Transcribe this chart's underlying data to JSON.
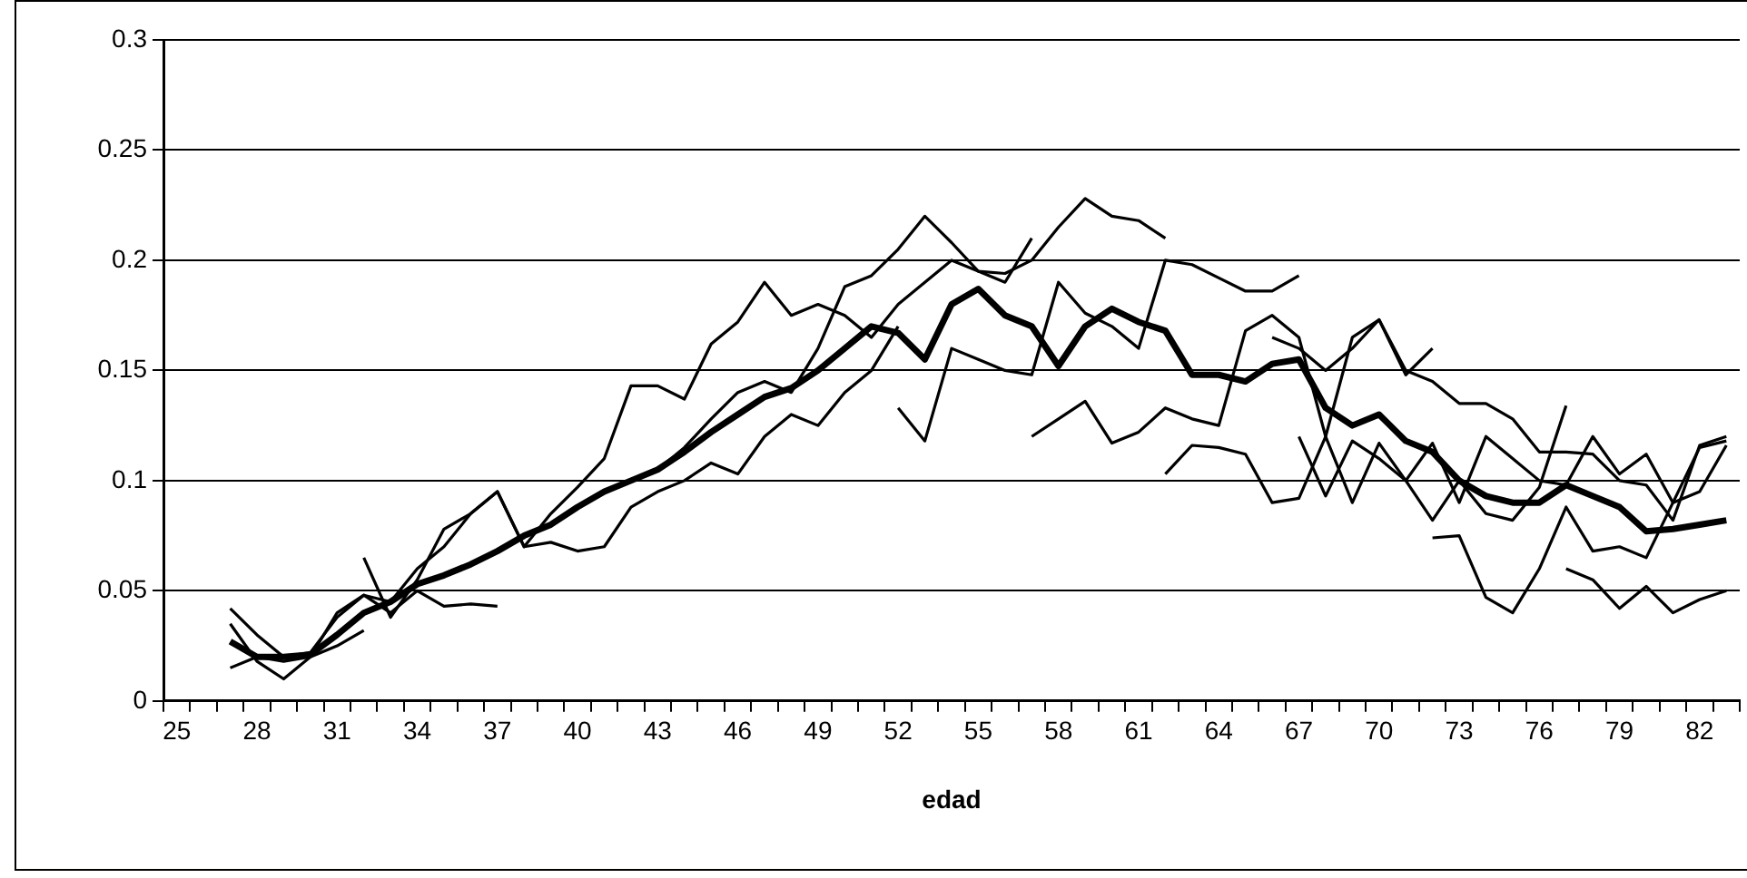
{
  "chart_data": {
    "type": "line",
    "xlabel": "edad",
    "categories": [
      "25",
      null,
      null,
      "28",
      null,
      null,
      "31",
      null,
      null,
      "34",
      null,
      null,
      "37",
      null,
      null,
      "40",
      null,
      null,
      "43",
      null,
      null,
      "46",
      null,
      null,
      "49",
      null,
      null,
      "52",
      null,
      null,
      "55",
      null,
      null,
      "58",
      null,
      null,
      "61",
      null,
      null,
      "64",
      null,
      null,
      "67",
      null,
      null,
      "70",
      null,
      null,
      "73",
      null,
      null,
      "76",
      null,
      null,
      "79",
      null,
      null,
      "82",
      null
    ],
    "ylim": [
      0,
      0.3
    ],
    "yticks": [
      0,
      0.05,
      0.1,
      0.15,
      0.2,
      0.25,
      0.3
    ],
    "grid": "y",
    "legend": false,
    "marker": "none",
    "line_style": "solid",
    "series": [
      {
        "color": "#000000",
        "values": [
          null,
          null,
          0.027,
          0.02,
          0.02,
          0.021,
          0.03,
          0.04,
          0.045,
          0.053,
          0.057,
          0.062,
          0.068,
          0.075,
          0.08,
          0.088,
          0.095,
          0.1,
          0.105,
          0.113,
          0.122,
          0.13,
          0.138,
          0.142,
          0.15,
          0.16,
          0.17,
          0.167,
          0.155,
          0.18,
          0.187,
          0.175,
          0.17,
          0.152,
          0.17,
          0.178,
          0.172,
          0.168,
          0.148,
          0.148,
          0.145,
          0.153,
          0.155,
          0.133,
          0.125,
          0.13,
          0.118,
          0.113,
          0.1,
          0.093,
          0.09,
          0.09,
          0.098,
          0.093,
          0.088,
          0.077,
          0.078,
          0.08,
          0.082
        ]
      },
      {
        "color": "#000000",
        "values": [
          null,
          null,
          0.042,
          0.03,
          0.02,
          0.022,
          0.038,
          0.048,
          0.04,
          0.05,
          0.043,
          0.044,
          0.043,
          null,
          null,
          null,
          null,
          null,
          null,
          null,
          null,
          null,
          null,
          null,
          null,
          null,
          null,
          null,
          null,
          null,
          null,
          null,
          null,
          null,
          null,
          null,
          null,
          null,
          null,
          null,
          null,
          null,
          null,
          null,
          null,
          null,
          null,
          null,
          null,
          null,
          null,
          null,
          null,
          null,
          null,
          null,
          null,
          null,
          null
        ]
      },
      {
        "color": "#000000",
        "values": [
          null,
          null,
          0.015,
          0.02,
          0.018,
          0.02,
          0.025,
          0.032,
          null,
          null,
          null,
          null,
          null,
          null,
          null,
          null,
          null,
          null,
          null,
          null,
          null,
          null,
          null,
          null,
          null,
          null,
          null,
          null,
          null,
          null,
          null,
          null,
          null,
          null,
          null,
          null,
          null,
          null,
          null,
          null,
          null,
          null,
          null,
          null,
          null,
          null,
          null,
          null,
          null,
          null,
          null,
          null,
          null,
          null,
          null,
          null,
          null,
          null,
          null
        ]
      },
      {
        "color": "#000000",
        "values": [
          null,
          null,
          0.035,
          0.018,
          0.01,
          0.02,
          0.04,
          0.048,
          0.045,
          0.06,
          0.07,
          0.085,
          0.095,
          0.07,
          0.085,
          0.097,
          0.11,
          0.143,
          0.143,
          0.137,
          0.162,
          0.172,
          0.19,
          0.175,
          0.18,
          0.175,
          0.165,
          0.18,
          0.19,
          0.2,
          0.195,
          0.19,
          0.21,
          null,
          null,
          null,
          null,
          null,
          null,
          null,
          null,
          null,
          null,
          null,
          null,
          null,
          null,
          null,
          null,
          null,
          null,
          null,
          null,
          null,
          null,
          null,
          null,
          null,
          null
        ]
      },
      {
        "color": "#000000",
        "values": [
          null,
          null,
          null,
          null,
          null,
          null,
          null,
          0.065,
          0.038,
          0.055,
          0.078,
          0.085,
          0.095,
          0.07,
          0.072,
          0.068,
          0.07,
          0.088,
          0.095,
          0.1,
          0.108,
          0.103,
          0.12,
          0.13,
          0.125,
          0.14,
          0.15,
          0.17,
          null,
          null,
          null,
          null,
          null,
          null,
          null,
          null,
          null,
          null,
          null,
          null,
          null,
          null,
          null,
          null,
          null,
          null,
          null,
          null,
          null,
          null,
          null,
          null,
          null,
          null,
          null,
          null,
          null,
          null,
          null
        ]
      },
      {
        "color": "#000000",
        "values": [
          null,
          null,
          null,
          null,
          null,
          null,
          null,
          null,
          null,
          null,
          null,
          null,
          null,
          null,
          null,
          null,
          null,
          0.1,
          0.105,
          0.115,
          0.128,
          0.14,
          0.145,
          0.14,
          0.16,
          0.188,
          0.193,
          0.205,
          0.22,
          0.208,
          0.195,
          0.194,
          0.2,
          0.215,
          0.228,
          0.22,
          0.218,
          0.21,
          null,
          null,
          null,
          null,
          null,
          null,
          null,
          null,
          null,
          null,
          null,
          null,
          null,
          null,
          null,
          null,
          null,
          null,
          null,
          null,
          null
        ]
      },
      {
        "color": "#000000",
        "values": [
          null,
          null,
          null,
          null,
          null,
          null,
          null,
          null,
          null,
          null,
          null,
          null,
          null,
          null,
          null,
          null,
          null,
          null,
          null,
          null,
          null,
          null,
          null,
          null,
          null,
          null,
          null,
          0.133,
          0.118,
          0.16,
          0.155,
          0.15,
          0.148,
          0.19,
          0.176,
          0.17,
          0.16,
          0.2,
          0.198,
          0.192,
          0.186,
          0.186,
          0.193,
          null,
          null,
          null,
          null,
          null,
          null,
          null,
          null,
          null,
          null,
          null,
          null,
          null,
          null,
          null,
          null
        ]
      },
      {
        "color": "#000000",
        "values": [
          null,
          null,
          null,
          null,
          null,
          null,
          null,
          null,
          null,
          null,
          null,
          null,
          null,
          null,
          null,
          null,
          null,
          null,
          null,
          null,
          null,
          null,
          null,
          null,
          null,
          null,
          null,
          null,
          null,
          null,
          null,
          null,
          0.12,
          0.128,
          0.136,
          0.117,
          0.122,
          0.133,
          0.128,
          0.125,
          0.168,
          0.175,
          0.165,
          0.12,
          0.165,
          0.173,
          0.148,
          0.16,
          null,
          null,
          null,
          null,
          null,
          null,
          null,
          null,
          null,
          null,
          null
        ]
      },
      {
        "color": "#000000",
        "values": [
          null,
          null,
          null,
          null,
          null,
          null,
          null,
          null,
          null,
          null,
          null,
          null,
          null,
          null,
          null,
          null,
          null,
          null,
          null,
          null,
          null,
          null,
          null,
          null,
          null,
          null,
          null,
          null,
          null,
          null,
          null,
          null,
          null,
          null,
          null,
          null,
          null,
          0.103,
          0.116,
          0.115,
          0.112,
          0.09,
          0.092,
          0.12,
          0.09,
          0.117,
          0.1,
          0.082,
          0.1,
          0.085,
          0.082,
          0.097,
          0.134,
          null,
          null,
          null,
          null,
          null,
          null
        ]
      },
      {
        "color": "#000000",
        "values": [
          null,
          null,
          null,
          null,
          null,
          null,
          null,
          null,
          null,
          null,
          null,
          null,
          null,
          null,
          null,
          null,
          null,
          null,
          null,
          null,
          null,
          null,
          null,
          null,
          null,
          null,
          null,
          null,
          null,
          null,
          null,
          null,
          null,
          null,
          null,
          null,
          null,
          null,
          null,
          null,
          null,
          0.165,
          0.16,
          0.15,
          0.16,
          0.173,
          0.15,
          0.145,
          0.135,
          0.135,
          0.128,
          0.113,
          0.113,
          0.112,
          0.1,
          0.098,
          0.082,
          0.116,
          0.12
        ]
      },
      {
        "color": "#000000",
        "values": [
          null,
          null,
          null,
          null,
          null,
          null,
          null,
          null,
          null,
          null,
          null,
          null,
          null,
          null,
          null,
          null,
          null,
          null,
          null,
          null,
          null,
          null,
          null,
          null,
          null,
          null,
          null,
          null,
          null,
          null,
          null,
          null,
          null,
          null,
          null,
          null,
          null,
          null,
          null,
          null,
          null,
          null,
          0.12,
          0.093,
          0.118,
          0.11,
          0.1,
          0.117,
          0.09,
          0.12,
          0.11,
          0.1,
          0.098,
          0.12,
          0.103,
          0.112,
          0.09,
          0.095,
          0.116
        ]
      },
      {
        "color": "#000000",
        "values": [
          null,
          null,
          null,
          null,
          null,
          null,
          null,
          null,
          null,
          null,
          null,
          null,
          null,
          null,
          null,
          null,
          null,
          null,
          null,
          null,
          null,
          null,
          null,
          null,
          null,
          null,
          null,
          null,
          null,
          null,
          null,
          null,
          null,
          null,
          null,
          null,
          null,
          null,
          null,
          null,
          null,
          null,
          null,
          null,
          null,
          null,
          null,
          0.074,
          0.075,
          0.047,
          0.04,
          0.06,
          0.088,
          0.068,
          0.07,
          0.065,
          0.09,
          0.115,
          0.118
        ]
      },
      {
        "color": "#000000",
        "values": [
          null,
          null,
          null,
          null,
          null,
          null,
          null,
          null,
          null,
          null,
          null,
          null,
          null,
          null,
          null,
          null,
          null,
          null,
          null,
          null,
          null,
          null,
          null,
          null,
          null,
          null,
          null,
          null,
          null,
          null,
          null,
          null,
          null,
          null,
          null,
          null,
          null,
          null,
          null,
          null,
          null,
          null,
          null,
          null,
          null,
          null,
          null,
          null,
          null,
          null,
          null,
          null,
          0.06,
          0.055,
          0.042,
          0.052,
          0.04,
          0.046,
          0.05
        ]
      }
    ]
  }
}
